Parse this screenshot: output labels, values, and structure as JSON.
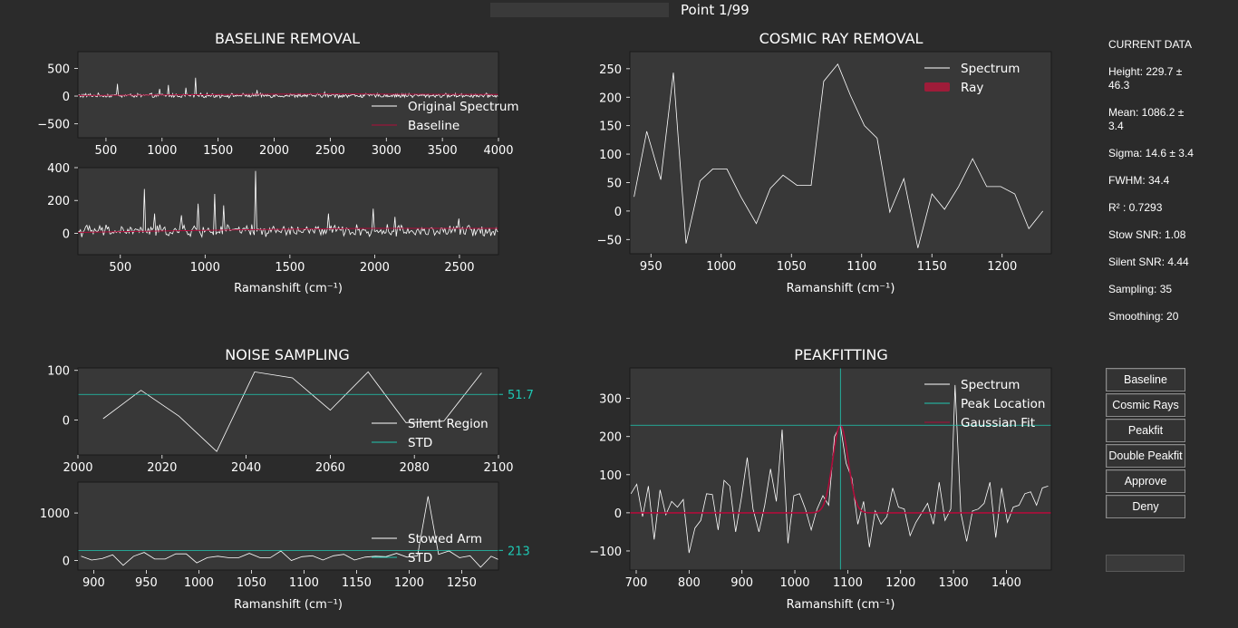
{
  "header": {
    "point_label": "Point 1/99",
    "progress": 0.0
  },
  "colors": {
    "background": "#2b2b2b",
    "plot_bg": "#383838",
    "spectrum": "#ffffff",
    "baseline": "#b00c3a",
    "cyan": "#1fc9b2",
    "cyan_text": "#1ec8b4",
    "ray_fill": "#9e1c39"
  },
  "info": {
    "title": "CURRENT DATA",
    "items": [
      "Height: 229.7 ± 46.3",
      "Mean: 1086.2 ± 3.4",
      "Sigma: 14.6 ± 3.4",
      "FWHM: 34.4",
      "R² : 0.7293",
      "Stow SNR: 1.08",
      "Silent SNR: 4.44",
      "Sampling: 35",
      "Smoothing: 20"
    ]
  },
  "buttons": [
    {
      "id": "baseline",
      "label": "Baseline"
    },
    {
      "id": "cosmic-rays",
      "label": "Cosmic Rays"
    },
    {
      "id": "peakfit",
      "label": "Peakfit"
    },
    {
      "id": "double-peakfit",
      "label": "Double Peakfit"
    },
    {
      "id": "approve",
      "label": "Approve"
    },
    {
      "id": "deny",
      "label": "Deny"
    }
  ],
  "chart_data": [
    {
      "id": "baseline-top",
      "title": "BASELINE REMOVAL",
      "type": "line",
      "xlabel": "",
      "xlim": [
        250,
        4000
      ],
      "ylim": [
        -750,
        800
      ],
      "xticks": [
        500,
        1000,
        1500,
        2000,
        2500,
        3000,
        3500,
        4000
      ],
      "yticks": [
        -500,
        0,
        500
      ],
      "legend": {
        "placement": "lower-right",
        "entries": [
          "Original Spectrum",
          "Baseline"
        ]
      },
      "series": [
        {
          "name": "Original Spectrum",
          "style": "spectrum",
          "kind": "noise",
          "x_range": [
            250,
            4000
          ],
          "n": 480,
          "amp": 30,
          "base": 10,
          "spikes": [
            [
              600,
              220
            ],
            [
              980,
              130
            ],
            [
              1060,
              200
            ],
            [
              1210,
              150
            ],
            [
              1300,
              330
            ],
            [
              1850,
              110
            ],
            [
              2450,
              70
            ],
            [
              3200,
              50
            ]
          ]
        },
        {
          "name": "Baseline",
          "style": "baseline",
          "x": [
            250,
            1000,
            2000,
            2700,
            3000,
            4000
          ],
          "y": [
            10,
            20,
            35,
            40,
            35,
            30
          ]
        }
      ]
    },
    {
      "id": "baseline-bottom",
      "type": "line",
      "xlabel": "Ramanshift (cm⁻¹)",
      "xlim": [
        250,
        2730
      ],
      "ylim": [
        -130,
        400
      ],
      "xticks": [
        500,
        1000,
        1500,
        2000,
        2500
      ],
      "yticks": [
        0,
        200,
        400
      ],
      "series": [
        {
          "name": "Spectrum",
          "style": "spectrum",
          "kind": "noise",
          "x_range": [
            250,
            2730
          ],
          "n": 330,
          "amp": 28,
          "base": 15,
          "spikes": [
            [
              640,
              270
            ],
            [
              700,
              120
            ],
            [
              860,
              110
            ],
            [
              960,
              180
            ],
            [
              1060,
              240
            ],
            [
              1110,
              170
            ],
            [
              1300,
              380
            ],
            [
              1730,
              120
            ],
            [
              1990,
              150
            ],
            [
              2120,
              100
            ],
            [
              2500,
              90
            ]
          ]
        },
        {
          "name": "Baseline",
          "style": "baseline",
          "x": [
            250,
            800,
            1500,
            2000,
            2730
          ],
          "y": [
            5,
            15,
            25,
            30,
            30
          ]
        }
      ]
    },
    {
      "id": "cosmic",
      "title": "COSMIC RAY REMOVAL",
      "type": "line",
      "xlabel": "Ramanshift (cm⁻¹)",
      "xlim": [
        935,
        1235
      ],
      "ylim": [
        -75,
        280
      ],
      "xticks": [
        950,
        1000,
        1050,
        1100,
        1150,
        1200
      ],
      "yticks": [
        -50,
        0,
        50,
        100,
        150,
        200,
        250
      ],
      "legend": {
        "placement": "upper-right",
        "entries": [
          "Spectrum",
          "Ray"
        ]
      },
      "series": [
        {
          "name": "Spectrum",
          "style": "spectrum",
          "x": [
            938,
            947,
            957,
            966,
            975,
            985,
            994,
            1004,
            1014,
            1025,
            1035,
            1044,
            1054,
            1064,
            1073,
            1083,
            1092,
            1102,
            1111,
            1120,
            1130,
            1140,
            1150,
            1159,
            1169,
            1179,
            1189,
            1199,
            1209,
            1219,
            1229
          ],
          "y": [
            25,
            140,
            55,
            243,
            -57,
            53,
            74,
            74,
            25,
            -22,
            40,
            63,
            45,
            45,
            228,
            258,
            203,
            150,
            128,
            -2,
            57,
            -65,
            30,
            3,
            43,
            92,
            43,
            43,
            30,
            -31,
            0
          ]
        }
      ]
    },
    {
      "id": "noise-top",
      "title": "NOISE SAMPLING",
      "type": "line",
      "xlabel": "",
      "xlim": [
        2000,
        2100
      ],
      "ylim": [
        -70,
        105
      ],
      "xticks": [
        2000,
        2020,
        2040,
        2060,
        2080,
        2100
      ],
      "yticks": [
        0,
        100
      ],
      "hline": {
        "value": 51.7,
        "label": "51.7"
      },
      "legend": {
        "placement": "lower-right",
        "entries": [
          "Silent Region",
          "STD"
        ]
      },
      "series": [
        {
          "name": "Silent Region",
          "style": "spectrum",
          "x": [
            2006,
            2015,
            2024,
            2033,
            2042,
            2051,
            2060,
            2069,
            2078,
            2087,
            2096
          ],
          "y": [
            3,
            60,
            8,
            -63,
            97,
            85,
            20,
            97,
            -5,
            -2,
            95
          ]
        }
      ]
    },
    {
      "id": "noise-bottom",
      "type": "line",
      "xlabel": "Ramanshift (cm⁻¹)",
      "xlim": [
        885,
        1285
      ],
      "ylim": [
        -200,
        1650
      ],
      "xticks": [
        900,
        950,
        1000,
        1050,
        1100,
        1150,
        1200,
        1250
      ],
      "yticks": [
        0,
        1000
      ],
      "hline": {
        "value": 213,
        "label": "213"
      },
      "legend": {
        "placement": "lower-right",
        "entries": [
          "Stowed Arm",
          "STD"
        ]
      },
      "series": [
        {
          "name": "Stowed Arm",
          "style": "spectrum",
          "x": [
            888,
            898,
            908,
            918,
            928,
            938,
            948,
            958,
            968,
            978,
            988,
            998,
            1008,
            1018,
            1028,
            1038,
            1048,
            1058,
            1068,
            1078,
            1088,
            1098,
            1108,
            1118,
            1128,
            1138,
            1148,
            1158,
            1168,
            1178,
            1188,
            1198,
            1208,
            1218,
            1228,
            1238,
            1248,
            1258,
            1268,
            1278,
            1285
          ],
          "y": [
            90,
            10,
            40,
            120,
            -100,
            90,
            170,
            30,
            30,
            140,
            140,
            -50,
            60,
            90,
            60,
            60,
            150,
            60,
            60,
            200,
            0,
            80,
            100,
            10,
            100,
            130,
            10,
            70,
            90,
            80,
            150,
            70,
            100,
            1350,
            130,
            200,
            60,
            100,
            -140,
            90,
            20
          ]
        }
      ]
    },
    {
      "id": "peakfit",
      "title": "PEAKFITTING",
      "type": "line",
      "xlabel": "Ramanshift (cm⁻¹)",
      "xlim": [
        688,
        1485
      ],
      "ylim": [
        -150,
        380
      ],
      "xticks": [
        700,
        800,
        900,
        1000,
        1100,
        1200,
        1300,
        1400
      ],
      "yticks": [
        -100,
        0,
        100,
        200,
        300
      ],
      "hline": {
        "value": 229.7
      },
      "vline": {
        "value": 1086.2
      },
      "gaussian": {
        "height": 229.7,
        "mean": 1086.2,
        "sigma": 14.6
      },
      "legend": {
        "placement": "upper-right",
        "entries": [
          "Spectrum",
          "Peak Location",
          "Gaussian Fit"
        ]
      },
      "series": [
        {
          "name": "Spectrum",
          "style": "spectrum",
          "x": [
            690,
            701,
            712,
            723,
            734,
            745,
            756,
            767,
            778,
            789,
            800,
            811,
            822,
            833,
            844,
            855,
            866,
            877,
            888,
            899,
            910,
            921,
            932,
            943,
            954,
            965,
            976,
            987,
            998,
            1009,
            1020,
            1031,
            1042,
            1053,
            1064,
            1075,
            1086,
            1097,
            1108,
            1119,
            1130,
            1141,
            1152,
            1163,
            1174,
            1185,
            1196,
            1207,
            1218,
            1229,
            1240,
            1251,
            1262,
            1273,
            1284,
            1295,
            1303,
            1314,
            1325,
            1336,
            1347,
            1358,
            1369,
            1380,
            1391,
            1402,
            1413,
            1424,
            1435,
            1446,
            1457,
            1468,
            1479
          ],
          "y": [
            50,
            75,
            -10,
            70,
            -70,
            60,
            -5,
            30,
            15,
            35,
            -105,
            -40,
            -20,
            50,
            48,
            -45,
            85,
            70,
            -50,
            40,
            145,
            10,
            -50,
            20,
            115,
            30,
            218,
            -80,
            45,
            50,
            10,
            -45,
            10,
            45,
            20,
            200,
            230,
            130,
            90,
            -30,
            30,
            -90,
            5,
            -30,
            -10,
            65,
            15,
            10,
            -60,
            -25,
            0,
            25,
            -30,
            80,
            -20,
            10,
            335,
            0,
            -75,
            5,
            10,
            25,
            80,
            -65,
            65,
            -25,
            15,
            20,
            50,
            55,
            20,
            65,
            70
          ]
        }
      ]
    }
  ]
}
